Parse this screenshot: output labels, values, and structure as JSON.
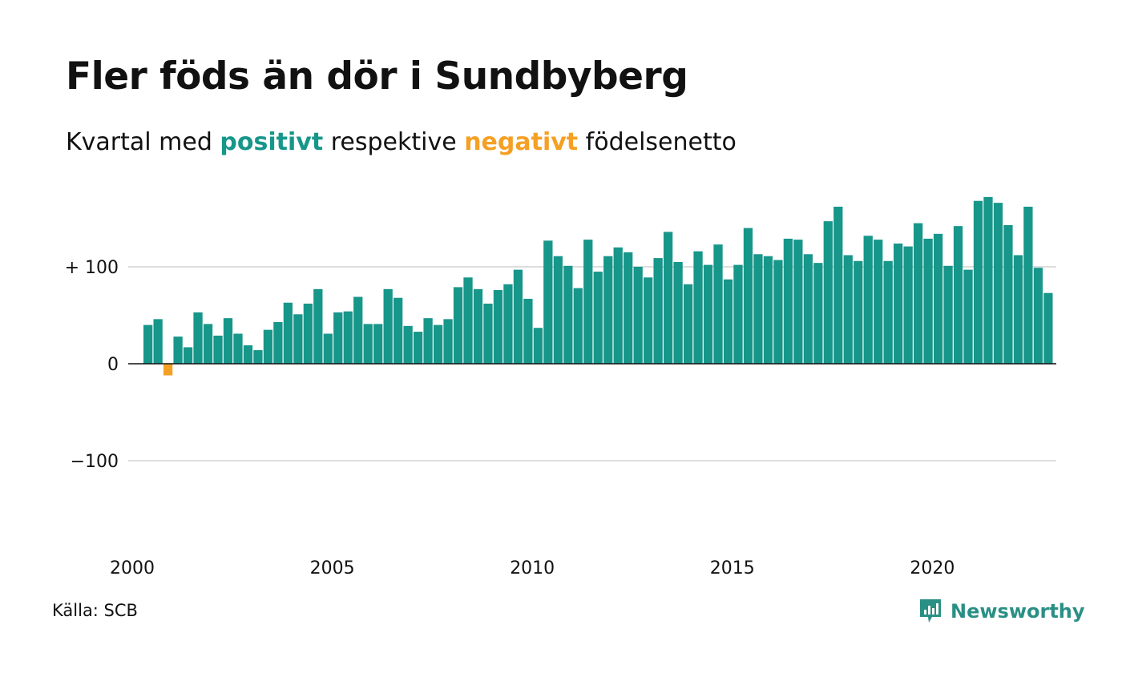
{
  "title": "Fler föds än dör i Sundbyberg",
  "subtitle": {
    "prefix": "Kvartal med ",
    "positive": "positivt",
    "middle": " respektive ",
    "negative": "negativt",
    "suffix": " födelsenetto"
  },
  "source": "Källa: SCB",
  "brand": "Newsworthy",
  "colors": {
    "positive": "#17968a",
    "negative": "#f5a024",
    "grid": "#dddddd",
    "baseline": "#111111",
    "brand": "#2a8f84"
  },
  "chart_data": {
    "type": "bar",
    "title": "Fler föds än dör i Sundbyberg",
    "subtitle": "Kvartal med positivt respektive negativt födelsenetto",
    "xlabel": "",
    "ylabel": "",
    "ylim": [
      -190,
      190
    ],
    "yticks": [
      {
        "value": 100,
        "label": "+ 100"
      },
      {
        "value": 0,
        "label": "0"
      },
      {
        "value": -100,
        "label": "−100"
      }
    ],
    "xticks": [
      {
        "value": 2000,
        "label": "2000"
      },
      {
        "value": 2005,
        "label": "2005"
      },
      {
        "value": 2010,
        "label": "2010"
      },
      {
        "value": 2015,
        "label": "2015"
      },
      {
        "value": 2020,
        "label": "2020"
      }
    ],
    "x_start_year": 2000,
    "bars_per_year": 4,
    "grid": true,
    "legend": "none",
    "values": [
      40,
      46,
      -12,
      28,
      17,
      53,
      41,
      29,
      47,
      31,
      19,
      14,
      35,
      43,
      63,
      51,
      62,
      77,
      31,
      53,
      54,
      69,
      41,
      41,
      77,
      68,
      39,
      33,
      47,
      40,
      46,
      79,
      89,
      77,
      62,
      76,
      82,
      97,
      67,
      37,
      127,
      111,
      101,
      78,
      128,
      95,
      111,
      120,
      115,
      100,
      89,
      109,
      136,
      105,
      82,
      116,
      102,
      123,
      87,
      102,
      140,
      113,
      111,
      107,
      129,
      128,
      113,
      104,
      147,
      162,
      112,
      106,
      132,
      128,
      106,
      124,
      121,
      145,
      129,
      134,
      101,
      142,
      97,
      168,
      172,
      166,
      143,
      112,
      162,
      99,
      73
    ]
  }
}
